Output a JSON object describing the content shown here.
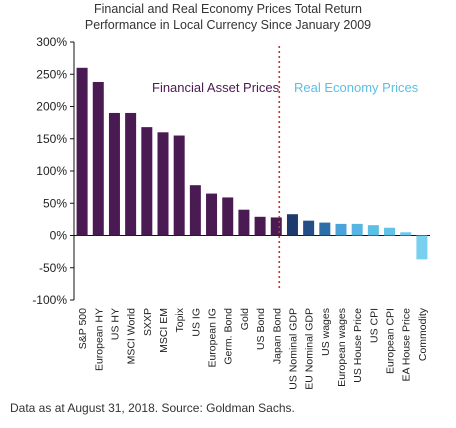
{
  "chart_data": {
    "type": "bar",
    "title_lines": [
      "Financial and Real Economy Prices Total Return",
      "Performance in Local Currency Since January 2009"
    ],
    "xlabel": "",
    "ylabel": "",
    "ylim": [
      -100,
      300
    ],
    "yticks": [
      -100,
      -50,
      0,
      50,
      100,
      150,
      200,
      250,
      300
    ],
    "ytick_labels": [
      "-100%",
      "-50%",
      "0%",
      "50%",
      "100%",
      "150%",
      "200%",
      "250%",
      "300%"
    ],
    "grid": false,
    "categories": [
      "S&P 500",
      "European HY",
      "US HY",
      "MSCI World",
      "SXXP",
      "MSCI EM",
      "Topix",
      "US IG",
      "European IG",
      "Germ. Bond",
      "Gold",
      "US Bond",
      "Japan Bond",
      "US Nominal GDP",
      "EU Nominal GDP",
      "US wages",
      "European wages",
      "US House Price",
      "US CPI",
      "European CPI",
      "EA House Price",
      "Commodity"
    ],
    "values": [
      260,
      238,
      190,
      190,
      168,
      160,
      155,
      78,
      65,
      59,
      40,
      29,
      28,
      33,
      23,
      20,
      18,
      18,
      16,
      12,
      5,
      -37
    ],
    "groups": [
      {
        "name": "Financial Asset Prices",
        "color": "#4a1a52"
      },
      {
        "name": "Real Economy Prices",
        "color": "#5bbfe6"
      }
    ],
    "bar_colors": [
      "#4a1a52",
      "#4a1a52",
      "#4a1a52",
      "#4a1a52",
      "#4a1a52",
      "#4a1a52",
      "#4a1a52",
      "#4a1a52",
      "#4a1a52",
      "#4a1a52",
      "#4a1a52",
      "#4a1a52",
      "#4a1a52",
      "#1c3a6b",
      "#234f86",
      "#2d6ea8",
      "#4aa3d9",
      "#58b4e3",
      "#5bbfe6",
      "#62c2e8",
      "#6ec9ec",
      "#78cfee"
    ],
    "divider_after_index": 12,
    "divider_color": "#c0392b",
    "axis_color": "#111111"
  },
  "source_note": "Data as at August 31, 2018. Source: Goldman Sachs."
}
